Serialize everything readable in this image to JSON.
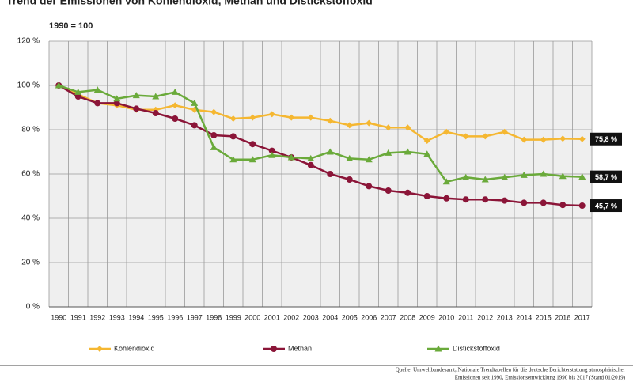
{
  "chart_data": {
    "type": "line",
    "title": "Trend der Emissionen von Kohlendioxid, Methan und Distickstoffoxid",
    "subtitle": "1990 = 100",
    "categories": [
      "1990",
      "1991",
      "1992",
      "1993",
      "1994",
      "1995",
      "1996",
      "1997",
      "1998",
      "1999",
      "2000",
      "2001",
      "2002",
      "2003",
      "2004",
      "2005",
      "2006",
      "2007",
      "2008",
      "2009",
      "2010",
      "2011",
      "2012",
      "2013",
      "2014",
      "2015",
      "2016",
      "2017"
    ],
    "series": [
      {
        "name": "Kohlendioxid",
        "color": "#f5b731",
        "marker": "diamond",
        "values": [
          100,
          96,
          92,
          91,
          89,
          89,
          91,
          89,
          88,
          85,
          85.5,
          87,
          85.5,
          85.5,
          84,
          82,
          83,
          81,
          81,
          75,
          79,
          77,
          77,
          79,
          75.5,
          75.5,
          76,
          75.8
        ],
        "value_labels": [
          null,
          null,
          null,
          null,
          null,
          null,
          null,
          null,
          null,
          null,
          null,
          null,
          null,
          null,
          null,
          null,
          null,
          null,
          null,
          null,
          null,
          null,
          null,
          null,
          null,
          null,
          null,
          "75,8 %"
        ]
      },
      {
        "name": "Methan",
        "color": "#8b1538",
        "marker": "circle",
        "values": [
          100,
          95,
          92,
          92,
          89.5,
          87.5,
          85,
          82,
          77.5,
          77,
          73.5,
          70.5,
          67.5,
          64,
          60,
          57.5,
          54.5,
          52.5,
          51.5,
          50,
          49,
          48.5,
          48.5,
          48,
          47,
          47,
          46,
          45.7
        ],
        "value_labels": [
          null,
          null,
          null,
          null,
          null,
          null,
          null,
          null,
          null,
          null,
          null,
          null,
          null,
          null,
          null,
          null,
          null,
          null,
          null,
          null,
          null,
          null,
          null,
          null,
          null,
          null,
          null,
          "45,7 %"
        ]
      },
      {
        "name": "Distickstoffoxid",
        "color": "#6aaa3a",
        "marker": "triangle",
        "values": [
          100,
          97,
          98,
          94,
          95.5,
          95,
          97,
          92,
          72,
          66.5,
          66.5,
          68.5,
          67.5,
          67,
          70,
          67,
          66.5,
          69.5,
          70,
          69,
          56.5,
          58.5,
          57.5,
          58.5,
          59.5,
          60,
          59,
          58.7
        ],
        "value_labels": [
          null,
          null,
          null,
          null,
          null,
          null,
          null,
          null,
          null,
          null,
          null,
          null,
          null,
          null,
          null,
          null,
          null,
          null,
          null,
          null,
          null,
          null,
          null,
          null,
          null,
          null,
          null,
          "58,7 %"
        ]
      }
    ],
    "ylim": [
      0,
      120
    ],
    "yticks": [
      {
        "value": 0,
        "label": "0 %"
      },
      {
        "value": 20,
        "label": "20 %"
      },
      {
        "value": 40,
        "label": "40 %"
      },
      {
        "value": 60,
        "label": "60 %"
      },
      {
        "value": 80,
        "label": "80 %"
      },
      {
        "value": 100,
        "label": "100 %"
      },
      {
        "value": 120,
        "label": "120 %"
      }
    ],
    "grid": true,
    "source": [
      "Quelle: Umweltbundesamt, Nationale Trendtabellen für die deutsche Berichterstattung atmosphärischer",
      "Emissionen seit 1990, Emissionsentwicklung 1990 bis 2017 (Stand 01/2019)"
    ]
  }
}
